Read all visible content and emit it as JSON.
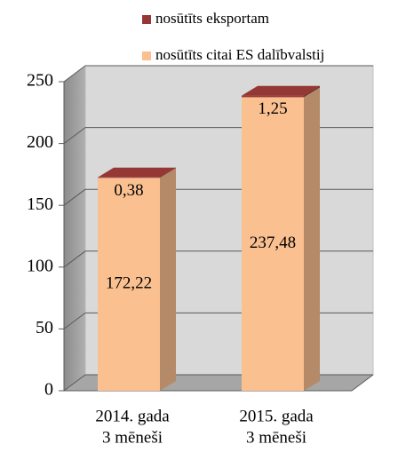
{
  "chart_data": {
    "type": "bar3d_stacked",
    "categories": [
      [
        "2014. gada",
        "3 mēneši"
      ],
      [
        "2015. gada",
        "3 mēneši"
      ]
    ],
    "series": [
      {
        "name": "nosūtīts citai ES dalībvalstij",
        "color": "#FAC090",
        "values": [
          172.22,
          237.48
        ],
        "value_labels": [
          "172,22",
          "237,48"
        ]
      },
      {
        "name": "nosūtīts eksportam",
        "color": "#953735",
        "values": [
          0.38,
          1.25
        ],
        "value_labels": [
          "0,38",
          "1,25"
        ]
      }
    ],
    "ylim": [
      0,
      250
    ],
    "yticks": [
      0,
      50,
      100,
      150,
      200,
      250
    ],
    "grid": true,
    "legend": "top"
  }
}
